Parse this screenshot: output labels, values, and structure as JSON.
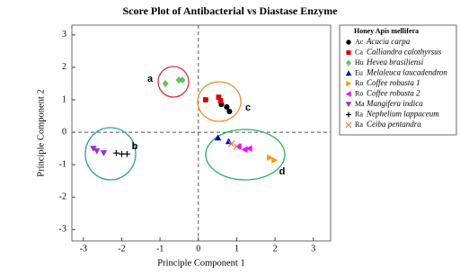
{
  "chart_data": {
    "type": "scatter",
    "title": "Score Plot of Antibacterial vs Diastase Enzyme",
    "x_label": "Principle Component 1",
    "y_label": "Principle Component 2",
    "legend_title": "Honey Apis mellifera",
    "xlim": [
      -3.3,
      3.45
    ],
    "xticks": [
      -3,
      -2,
      -1,
      0,
      1,
      2,
      3
    ],
    "ylim": [
      -3.35,
      3.3
    ],
    "yticks": [
      -3,
      -2,
      -1,
      0,
      1,
      2,
      3
    ],
    "annotations": [
      "a",
      "b",
      "c",
      "d"
    ],
    "series": [
      {
        "name": "Acacia carpa",
        "code": "Ac",
        "color": "#000000",
        "marker": "circle",
        "x": [
          0.6,
          0.74,
          0.81
        ],
        "values": [
          0.86,
          0.78,
          0.64
        ]
      },
      {
        "name": "Calliandra calothyrsus",
        "code": "Ca",
        "color": "#e00000",
        "marker": "square",
        "x": [
          0.19,
          0.53,
          0.58
        ],
        "values": [
          1.0,
          1.08,
          0.97
        ]
      },
      {
        "name": "Hevea brasiliensi",
        "code": "Hu",
        "color": "#5cc65c",
        "marker": "diamond",
        "x": [
          -0.86,
          -0.51,
          -0.42
        ],
        "values": [
          1.5,
          1.61,
          1.61
        ]
      },
      {
        "name": "Melaleuca laucadendron",
        "code": "Eu",
        "color": "#0000cc",
        "marker": "triangle-up",
        "x": [
          0.51,
          0.79
        ],
        "values": [
          -0.17,
          -0.28
        ]
      },
      {
        "name": "Coffee robusta 1",
        "code": "Ro",
        "color": "#ff9900",
        "marker": "triangle-right",
        "x": [
          1.86,
          1.98
        ],
        "values": [
          -0.78,
          -0.86
        ]
      },
      {
        "name": "Coffee robusta 2",
        "code": "Ro",
        "color": "#ff00ff",
        "marker": "triangle-left",
        "x": [
          1.05,
          1.21,
          1.33
        ],
        "values": [
          -0.44,
          -0.53,
          -0.5
        ]
      },
      {
        "name": "Mangifera indica",
        "code": "Ma",
        "color": "#9933cc",
        "marker": "triangle-down",
        "x": [
          -2.74,
          -2.65,
          -2.47
        ],
        "values": [
          -0.5,
          -0.58,
          -0.64
        ]
      },
      {
        "name": "Nephelium lappaceum",
        "code": "Ra",
        "color": "#000000",
        "marker": "plus",
        "x": [
          -2.14,
          -2.0,
          -1.86
        ],
        "values": [
          -0.64,
          -0.67,
          -0.67
        ]
      },
      {
        "name": "Ceiba pentandra",
        "code": "Ra",
        "color": "#e07060",
        "marker": "cross",
        "x": [
          0.86,
          1.0
        ],
        "values": [
          -0.36,
          -0.44
        ]
      }
    ]
  }
}
